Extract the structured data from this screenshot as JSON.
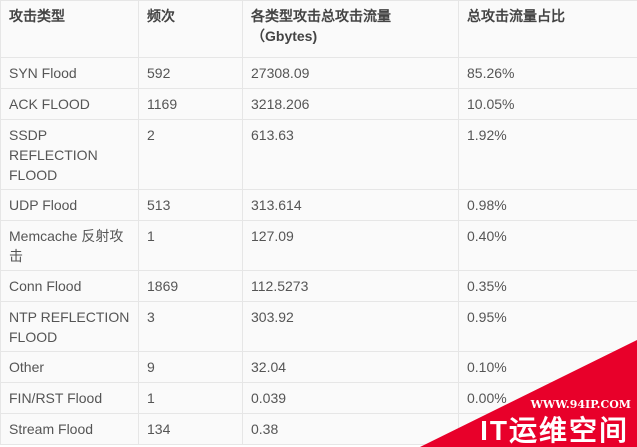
{
  "headers": [
    "攻击类型",
    "频次",
    "各类型攻击总攻击流量（Gbytes)",
    "总攻击流量占比"
  ],
  "rows": [
    [
      "SYN Flood",
      "592",
      "27308.09",
      "85.26%"
    ],
    [
      "ACK FLOOD",
      "1169",
      "3218.206",
      "10.05%"
    ],
    [
      "SSDP REFLECTION FLOOD",
      "2",
      "613.63",
      "1.92%"
    ],
    [
      "UDP Flood",
      "513",
      "313.614",
      "0.98%"
    ],
    [
      "Memcache 反射攻击",
      "1",
      "127.09",
      "0.40%"
    ],
    [
      "Conn Flood",
      "1869",
      "112.5273",
      "0.35%"
    ],
    [
      "NTP REFLECTION FLOOD",
      "3",
      "303.92",
      "0.95%"
    ],
    [
      "Other",
      "9",
      "32.04",
      "0.10%"
    ],
    [
      "FIN/RST Flood",
      "1",
      "0.039",
      "0.00%"
    ],
    [
      "Stream Flood",
      "134",
      "0.38",
      ""
    ]
  ],
  "watermark": {
    "url": "WWW.94IP.COM",
    "name": "IT运维空间",
    "color": "#e8002a"
  }
}
